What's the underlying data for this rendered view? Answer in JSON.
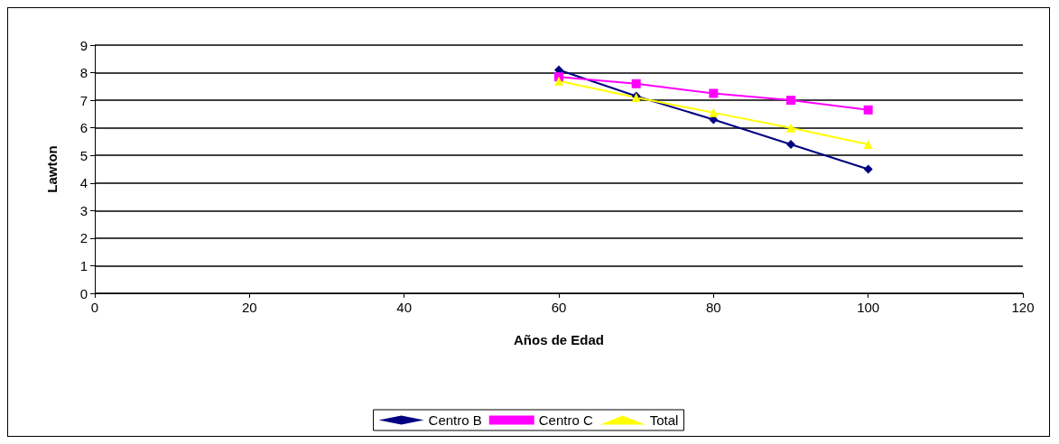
{
  "chart_data": {
    "type": "line",
    "xlabel": "Años de Edad",
    "ylabel": "Lawton",
    "x": [
      60,
      70,
      80,
      90,
      100
    ],
    "series": [
      {
        "name": "Centro B",
        "color": "#000080",
        "marker": "diamond",
        "values": [
          8.1,
          7.15,
          6.3,
          5.4,
          4.5
        ]
      },
      {
        "name": "Centro C",
        "color": "#ff00ff",
        "marker": "square",
        "values": [
          7.85,
          7.6,
          7.25,
          7.0,
          6.65
        ]
      },
      {
        "name": "Total",
        "color": "#ffff00",
        "marker": "triangle",
        "values": [
          7.7,
          7.1,
          6.55,
          6.0,
          5.4
        ]
      }
    ],
    "xlim": [
      0,
      120
    ],
    "xticks": [
      0,
      20,
      40,
      60,
      80,
      100,
      120
    ],
    "ylim": [
      0,
      9
    ],
    "yticks": [
      0,
      1,
      2,
      3,
      4,
      5,
      6,
      7,
      8,
      9
    ],
    "grid": "y",
    "legend": "bottom",
    "line_style": "solid"
  }
}
